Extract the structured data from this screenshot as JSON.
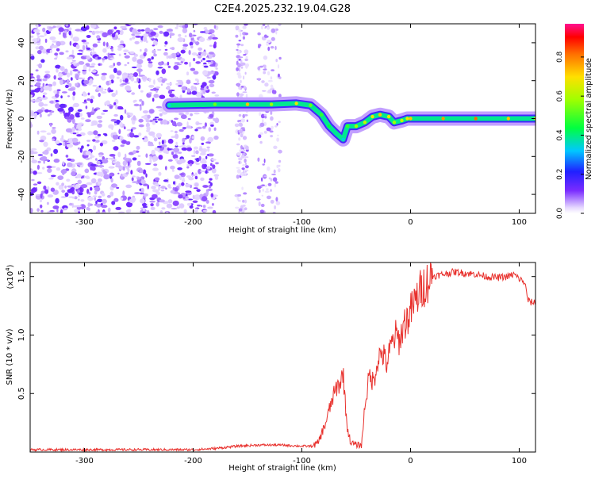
{
  "title": "C2E4.2025.232.19.04.G28",
  "colorbar": {
    "label": "Normalized spectral amplitude",
    "ticks": [
      "0.0",
      "0.2",
      "0.4",
      "0.6",
      "0.8"
    ],
    "tick_values": [
      0.0,
      0.2,
      0.4,
      0.6,
      0.8
    ],
    "range": [
      0,
      0.97
    ]
  },
  "chart_data": [
    {
      "type": "heatmap",
      "title": "",
      "xlabel": "Height of straight line (km)",
      "ylabel": "Frequency (Hz)",
      "xlim": [
        -350,
        115
      ],
      "ylim": [
        -50,
        50
      ],
      "xticks": [
        -300,
        -200,
        -100,
        0,
        100
      ],
      "xtick_labels": [
        "-300",
        "-200",
        "-100",
        "0",
        "100"
      ],
      "yticks": [
        -40,
        -20,
        0,
        20,
        40
      ],
      "ytick_labels": [
        "-40",
        "-20",
        "0",
        "20",
        "40"
      ],
      "noise_region_x": [
        -350,
        -178
      ],
      "noise_strips_x": [
        [
          -160,
          -150
        ],
        [
          -140,
          -120
        ]
      ],
      "ridge": [
        {
          "x": -222,
          "y": 7,
          "amp": 0.35
        },
        {
          "x": -180,
          "y": 7.5,
          "amp": 0.55
        },
        {
          "x": -150,
          "y": 7.5,
          "amp": 0.75
        },
        {
          "x": -128,
          "y": 7.5,
          "amp": 0.6
        },
        {
          "x": -105,
          "y": 8,
          "amp": 0.7
        },
        {
          "x": -92,
          "y": 7,
          "amp": 0.55
        },
        {
          "x": -82,
          "y": 2,
          "amp": 0.5
        },
        {
          "x": -75,
          "y": -4,
          "amp": 0.45
        },
        {
          "x": -68,
          "y": -8,
          "amp": 0.4
        },
        {
          "x": -62,
          "y": -11,
          "amp": 0.35
        },
        {
          "x": -58,
          "y": -4,
          "amp": 0.5
        },
        {
          "x": -50,
          "y": -4,
          "amp": 0.6
        },
        {
          "x": -42,
          "y": -2,
          "amp": 0.65
        },
        {
          "x": -35,
          "y": 1,
          "amp": 0.7
        },
        {
          "x": -28,
          "y": 2,
          "amp": 0.75
        },
        {
          "x": -20,
          "y": 1,
          "amp": 0.7
        },
        {
          "x": -15,
          "y": -2,
          "amp": 0.6
        },
        {
          "x": -8,
          "y": -1,
          "amp": 0.65
        },
        {
          "x": -3,
          "y": 0,
          "amp": 0.7
        },
        {
          "x": 0,
          "y": 0,
          "amp": 0.75
        },
        {
          "x": 30,
          "y": 0,
          "amp": 0.8
        },
        {
          "x": 60,
          "y": 0,
          "amp": 0.85
        },
        {
          "x": 90,
          "y": 0,
          "amp": 0.75
        },
        {
          "x": 115,
          "y": 0,
          "amp": 0.7
        }
      ]
    },
    {
      "type": "line",
      "title": "",
      "xlabel": "Height of straight line (km)",
      "ylabel": "SNR (10 * v/v)",
      "y_multiplier": "(x10",
      "y_multiplier_exp": "4",
      "xlim": [
        -350,
        115
      ],
      "ylim": [
        0,
        1.62
      ],
      "xticks": [
        -300,
        -200,
        -100,
        0,
        100
      ],
      "xtick_labels": [
        "-300",
        "-200",
        "-100",
        "0",
        "100"
      ],
      "yticks": [
        0.5,
        1.0,
        1.5
      ],
      "ytick_labels": [
        "0.5",
        "1.0",
        "1.5"
      ],
      "color": "#e8302c",
      "series": [
        {
          "x": [
            -350,
            -300,
            -250,
            -200,
            -180,
            -160,
            -140,
            -120,
            -100,
            -90,
            -85,
            -78,
            -72,
            -68,
            -64,
            -62,
            -60,
            -58,
            -55,
            -50,
            -45,
            -42,
            -38,
            -34,
            -30,
            -26,
            -22,
            -18,
            -14,
            -10,
            -6,
            -2,
            0,
            5,
            10,
            15,
            20,
            30,
            40,
            50,
            60,
            70,
            80,
            90,
            95,
            100,
            105,
            108,
            110,
            115
          ],
          "y": [
            0.02,
            0.02,
            0.02,
            0.02,
            0.03,
            0.05,
            0.06,
            0.06,
            0.05,
            0.05,
            0.08,
            0.25,
            0.45,
            0.55,
            0.6,
            0.7,
            0.4,
            0.2,
            0.08,
            0.06,
            0.06,
            0.4,
            0.65,
            0.6,
            0.8,
            0.85,
            0.75,
            0.9,
            1.0,
            0.95,
            1.1,
            1.15,
            1.2,
            1.3,
            1.4,
            1.45,
            1.5,
            1.52,
            1.54,
            1.53,
            1.52,
            1.5,
            1.49,
            1.5,
            1.52,
            1.48,
            1.45,
            1.3,
            1.28,
            1.28
          ]
        }
      ]
    }
  ]
}
